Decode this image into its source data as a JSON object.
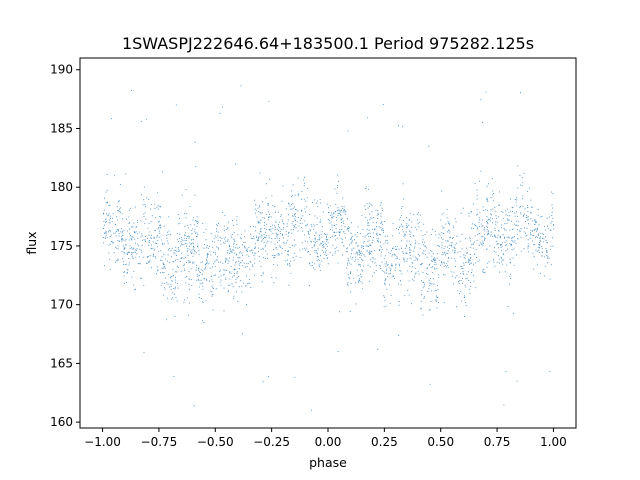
{
  "chart_data": {
    "type": "scatter",
    "title": "1SWASPJ222646.64+183500.1 Period 975282.125s",
    "xlabel": "phase",
    "ylabel": "flux",
    "xlim": [
      -1.1,
      1.1
    ],
    "ylim": [
      159.5,
      191.0
    ],
    "x_ticks": [
      -1.0,
      -0.75,
      -0.5,
      -0.25,
      0.0,
      0.25,
      0.5,
      0.75,
      1.0
    ],
    "x_tick_labels": [
      "−1.00",
      "−0.75",
      "−0.50",
      "−0.25",
      "0.00",
      "0.25",
      "0.50",
      "0.75",
      "1.00"
    ],
    "y_ticks": [
      160,
      165,
      170,
      175,
      180,
      185,
      190
    ],
    "y_tick_labels": [
      "160",
      "165",
      "170",
      "175",
      "180",
      "185",
      "190"
    ],
    "grid": false,
    "legend": "none",
    "marker_color": "#1f77b4",
    "series": [
      {
        "x_range": [
          -1.0,
          1.0
        ],
        "profile": {
          "phase": [
            -1.0,
            -0.9,
            -0.8,
            -0.7,
            -0.6,
            -0.5,
            -0.4,
            -0.3,
            -0.2,
            -0.1,
            0.0,
            0.1,
            0.2,
            0.3,
            0.4,
            0.5,
            0.6,
            0.7,
            0.8,
            0.9,
            1.0
          ],
          "median_flux": [
            176.2,
            175.6,
            175.0,
            174.5,
            174.0,
            173.7,
            174.4,
            175.8,
            176.8,
            176.6,
            176.0,
            175.6,
            175.0,
            174.4,
            174.0,
            173.6,
            174.4,
            175.8,
            176.8,
            176.6,
            176.2
          ],
          "spread": [
            1.6,
            1.8,
            2.0,
            2.0,
            2.1,
            2.0,
            2.0,
            1.9,
            1.9,
            1.8,
            1.6,
            1.8,
            2.0,
            2.0,
            2.1,
            2.0,
            2.0,
            1.9,
            1.9,
            1.8,
            1.6
          ]
        },
        "outlier_range": [
          161,
          189
        ]
      }
    ]
  }
}
